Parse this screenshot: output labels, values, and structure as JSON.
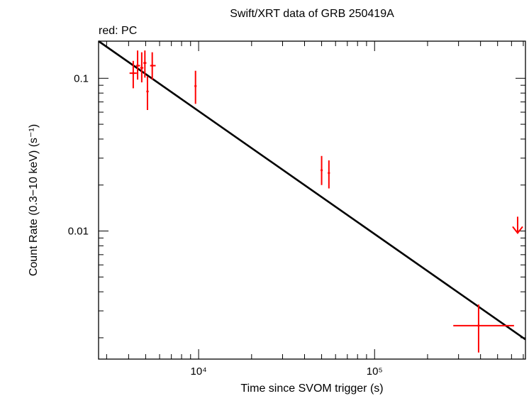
{
  "chart_data": {
    "type": "scatter",
    "title": "Swift/XRT data of GRB 250419A",
    "subtitle": "red: PC",
    "xlabel": "Time since SVOM trigger (s)",
    "ylabel": "Count Rate (0.3−10 keV) (s⁻¹)",
    "x_scale": "log",
    "y_scale": "log",
    "xlim": [
      2700,
      720000
    ],
    "ylim": [
      0.00145,
      0.175
    ],
    "x_ticks": [
      {
        "value": 10000,
        "label": "10⁴"
      },
      {
        "value": 100000,
        "label": "10⁵"
      }
    ],
    "y_ticks": [
      {
        "value": 0.1,
        "label": "0.1"
      },
      {
        "value": 0.01,
        "label": "0.01"
      }
    ],
    "grid": false,
    "colors": {
      "data": "#ff0000",
      "model": "#000000",
      "axes": "#000000"
    },
    "series": [
      {
        "kind": "points",
        "points": [
          {
            "x": 4250,
            "y": 0.108,
            "xlo": 4050,
            "xhi": 4450,
            "ylo": 0.086,
            "yhi": 0.13
          },
          {
            "x": 4500,
            "y": 0.121,
            "xlo": 4400,
            "xhi": 4650,
            "ylo": 0.098,
            "yhi": 0.152
          },
          {
            "x": 4750,
            "y": 0.117,
            "xlo": 4650,
            "xhi": 4850,
            "ylo": 0.094,
            "yhi": 0.148
          },
          {
            "x": 4950,
            "y": 0.126,
            "xlo": 4850,
            "xhi": 5050,
            "ylo": 0.101,
            "yhi": 0.152
          },
          {
            "x": 5120,
            "y": 0.082,
            "xlo": 5050,
            "xhi": 5200,
            "ylo": 0.062,
            "yhi": 0.103
          },
          {
            "x": 5450,
            "y": 0.121,
            "xlo": 5300,
            "xhi": 5700,
            "ylo": 0.098,
            "yhi": 0.148
          },
          {
            "x": 9600,
            "y": 0.089,
            "xlo": 9500,
            "xhi": 9700,
            "ylo": 0.068,
            "yhi": 0.112
          },
          {
            "x": 50000,
            "y": 0.025,
            "xlo": 49500,
            "xhi": 50500,
            "ylo": 0.02,
            "yhi": 0.031
          },
          {
            "x": 55000,
            "y": 0.024,
            "xlo": 54500,
            "xhi": 55500,
            "ylo": 0.019,
            "yhi": 0.029
          },
          {
            "x": 390000,
            "y": 0.0024,
            "xlo": 280000,
            "xhi": 620000,
            "ylo": 0.0016,
            "yhi": 0.0033
          }
        ],
        "upper_limits": [
          {
            "x": 650000,
            "y": 0.0097
          }
        ]
      },
      {
        "kind": "model",
        "points": [
          {
            "x": 2700,
            "y": 0.175
          },
          {
            "x": 720000,
            "y": 0.00195
          }
        ]
      }
    ]
  }
}
